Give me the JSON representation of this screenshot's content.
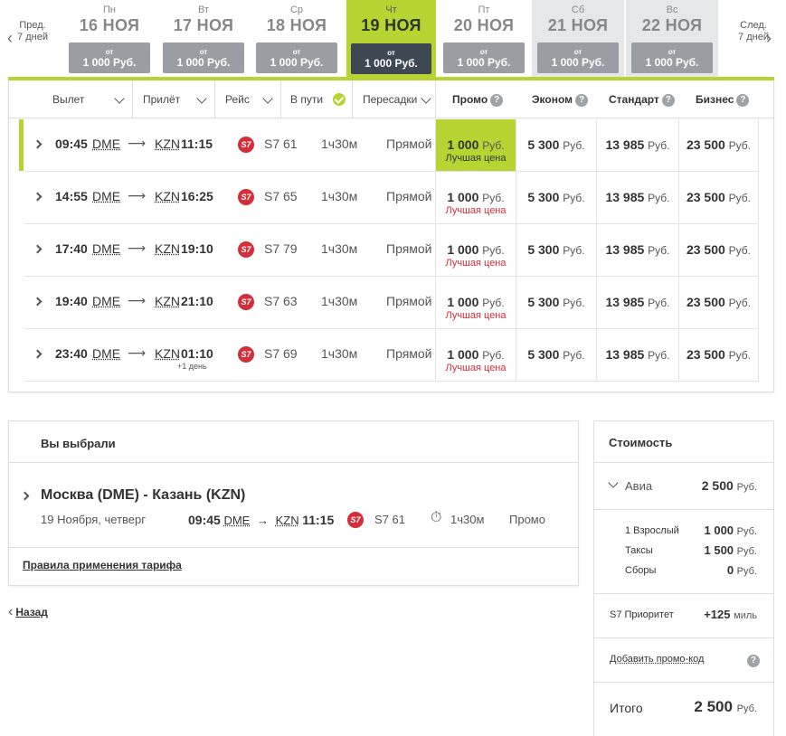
{
  "nav": {
    "prev_line1": "Пред.",
    "prev_line2": "7 дней",
    "next_line1": "След.",
    "next_line2": "7 дней"
  },
  "days": [
    {
      "dow": "Пн",
      "date": "16 НОЯ",
      "from": "от",
      "price": "1 000 Руб."
    },
    {
      "dow": "Вт",
      "date": "17 НОЯ",
      "from": "от",
      "price": "1 000 Руб."
    },
    {
      "dow": "Ср",
      "date": "18 НОЯ",
      "from": "от",
      "price": "1 000 Руб."
    },
    {
      "dow": "Чт",
      "date": "19 НОЯ",
      "from": "от",
      "price": "1 000 Руб."
    },
    {
      "dow": "Пт",
      "date": "20 НОЯ",
      "from": "от",
      "price": "1 000 Руб."
    },
    {
      "dow": "Сб",
      "date": "21 НОЯ",
      "from": "от",
      "price": "1 000 Руб."
    },
    {
      "dow": "Вс",
      "date": "22 НОЯ",
      "from": "от",
      "price": "1 000 Руб."
    }
  ],
  "active_day_index": 3,
  "columns": {
    "depart": "Вылет",
    "arrive": "Прилёт",
    "flight": "Рейс",
    "duration": "В пути",
    "stops": "Пересадки",
    "promo": "Промо",
    "economy": "Эконом",
    "standard": "Стандарт",
    "business": "Бизнес",
    "help": "?"
  },
  "flights": [
    {
      "dep": "09:45",
      "dep_ap": "DME",
      "arr_ap": "KZN",
      "arr": "11:15",
      "next_day": "",
      "airline": "S7",
      "flight": "S7 61",
      "dur": "1ч30м",
      "stops": "Прямой",
      "promo": "1 000",
      "economy": "5 300",
      "standard": "13 985",
      "business": "23 500",
      "best": "Лучшая цена",
      "cur": "Руб."
    },
    {
      "dep": "14:55",
      "dep_ap": "DME",
      "arr_ap": "KZN",
      "arr": "16:25",
      "next_day": "",
      "airline": "S7",
      "flight": "S7 65",
      "dur": "1ч30м",
      "stops": "Прямой",
      "promo": "1 000",
      "economy": "5 300",
      "standard": "13 985",
      "business": "23 500",
      "best": "Лучшая цена",
      "cur": "Руб."
    },
    {
      "dep": "17:40",
      "dep_ap": "DME",
      "arr_ap": "KZN",
      "arr": "19:10",
      "next_day": "",
      "airline": "S7",
      "flight": "S7 79",
      "dur": "1ч30м",
      "stops": "Прямой",
      "promo": "1 000",
      "economy": "5 300",
      "standard": "13 985",
      "business": "23 500",
      "best": "Лучшая цена",
      "cur": "Руб."
    },
    {
      "dep": "19:40",
      "dep_ap": "DME",
      "arr_ap": "KZN",
      "arr": "21:10",
      "next_day": "",
      "airline": "S7",
      "flight": "S7 63",
      "dur": "1ч30м",
      "stops": "Прямой",
      "promo": "1 000",
      "economy": "5 300",
      "standard": "13 985",
      "business": "23 500",
      "best": "Лучшая цена",
      "cur": "Руб."
    },
    {
      "dep": "23:40",
      "dep_ap": "DME",
      "arr_ap": "KZN",
      "arr": "01:10",
      "next_day": "+1 день",
      "airline": "S7",
      "flight": "S7 69",
      "dur": "1ч30м",
      "stops": "Прямой",
      "promo": "1 000",
      "economy": "5 300",
      "standard": "13 985",
      "business": "23 500",
      "best": "Лучшая цена",
      "cur": "Руб."
    }
  ],
  "selected": {
    "title": "Вы выбрали",
    "route": "Москва (DME) - Казань (KZN)",
    "date": "19 Ноября, четверг",
    "dep": "09:45",
    "dep_ap": "DME",
    "arr_ap": "KZN",
    "arr": "11:15",
    "airline": "S7",
    "flight": "S7 61",
    "dur": "1ч30м",
    "fare": "Промо",
    "rules_link": "Правила применения тарифа"
  },
  "back_label": "Назад",
  "cost": {
    "title": "Стоимость",
    "avia_label": "Авиа",
    "avia_value": "2 500",
    "adult_label": "1 Взрослый",
    "adult_value": "1 000",
    "taxes_label": "Таксы",
    "taxes_value": "1 500",
    "fees_label": "Сборы",
    "fees_value": "0",
    "priority_label": "S7 Приоритет",
    "priority_value": "+125",
    "miles": "миль",
    "promo_link": "Добавить промо-код",
    "help": "?",
    "total_label": "Итого",
    "total_value": "2 500",
    "cur": "Руб."
  },
  "colors": {
    "accent": "#b8d432",
    "dark": "#3d4853",
    "red": "#d42e3a",
    "grey_box": "#9a9ea4"
  }
}
